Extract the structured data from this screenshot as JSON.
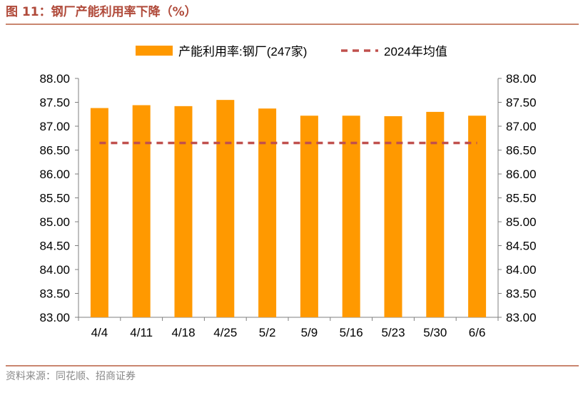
{
  "figure": {
    "title": "图 11：钢厂产能利用率下降（%）",
    "source": "资料来源：同花顺、招商证券"
  },
  "colors": {
    "bar": "#FF9900",
    "avg_line": "#C0504D",
    "title": "#B04A3A",
    "rule": "#C9866F",
    "axis": "#7F7F7F"
  },
  "chart_data": {
    "type": "bar",
    "title": "",
    "categories": [
      "4/4",
      "4/11",
      "4/18",
      "4/25",
      "5/2",
      "5/9",
      "5/16",
      "5/23",
      "5/30",
      "6/6"
    ],
    "series": [
      {
        "name": "产能利用率:钢厂(247家)",
        "kind": "bar",
        "values": [
          87.38,
          87.44,
          87.42,
          87.55,
          87.37,
          87.22,
          87.22,
          87.21,
          87.3,
          87.22
        ]
      },
      {
        "name": "2024年均值",
        "kind": "dashed-line",
        "values": [
          86.65,
          86.65,
          86.65,
          86.65,
          86.65,
          86.65,
          86.65,
          86.65,
          86.65,
          86.65
        ]
      }
    ],
    "ylim": [
      83.0,
      88.0
    ],
    "yticks": [
      "83.00",
      "83.50",
      "84.00",
      "84.50",
      "85.00",
      "85.50",
      "86.00",
      "86.50",
      "87.00",
      "87.50",
      "88.00"
    ],
    "y2ticks": [
      "83.00",
      "83.50",
      "84.00",
      "84.50",
      "85.00",
      "85.50",
      "86.00",
      "86.50",
      "87.00",
      "87.50",
      "88.00"
    ],
    "xlabel": "",
    "ylabel": "",
    "legend_position": "top-center",
    "grid": false
  }
}
